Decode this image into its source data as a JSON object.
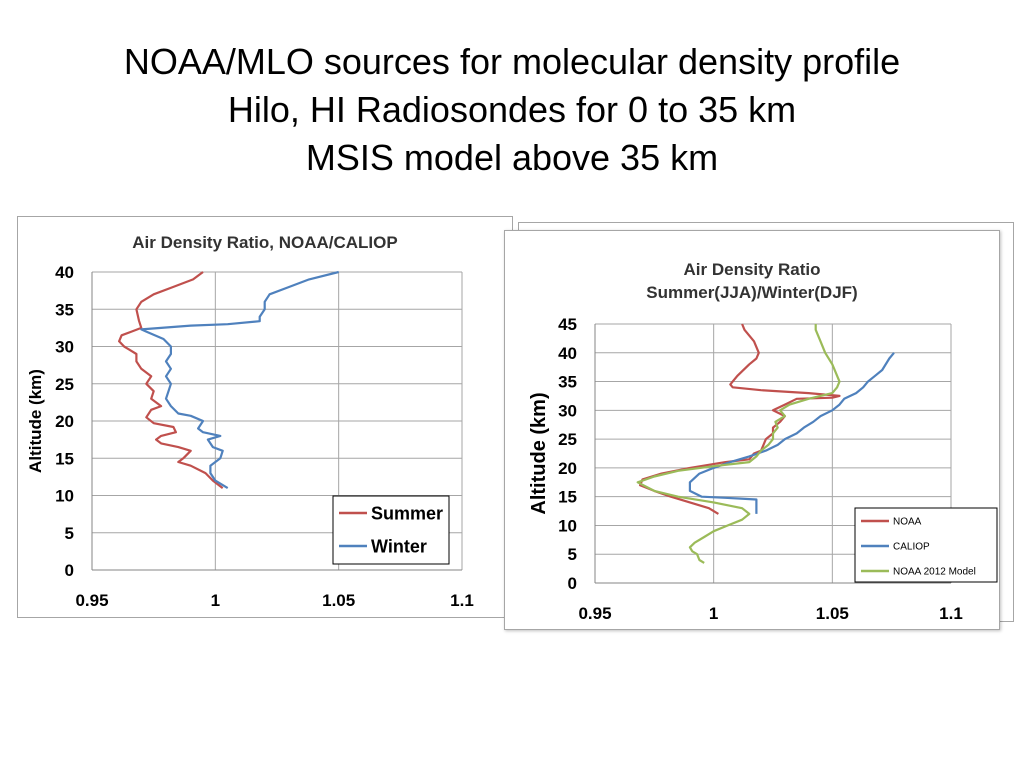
{
  "slide": {
    "title_lines": [
      "NOAA/MLO sources for molecular density profile",
      "Hilo, HI Radiosondes for 0 to 35 km",
      "MSIS model above 35 km"
    ]
  },
  "chart_data": [
    {
      "type": "line",
      "title": "Air Density Ratio, NOAA/CALIOP",
      "xlabel": "",
      "ylabel": "Altitude (km)",
      "xlim": [
        0.95,
        1.1
      ],
      "ylim": [
        0,
        40
      ],
      "x_ticks": [
        "0.95",
        "1",
        "1.05",
        "1.1"
      ],
      "y_ticks": [
        "0",
        "5",
        "10",
        "15",
        "20",
        "25",
        "30",
        "35",
        "40"
      ],
      "grid": true,
      "legend_position": "bottom-right",
      "series": [
        {
          "name": "Summer",
          "color": "#c0504d",
          "points": [
            [
              1.003,
              11
            ],
            [
              0.999,
              12
            ],
            [
              0.996,
              13
            ],
            [
              0.99,
              14
            ],
            [
              0.985,
              14.5
            ],
            [
              0.987,
              15
            ],
            [
              0.99,
              16
            ],
            [
              0.985,
              16.5
            ],
            [
              0.978,
              17
            ],
            [
              0.976,
              17.5
            ],
            [
              0.978,
              18
            ],
            [
              0.984,
              18.5
            ],
            [
              0.983,
              19.2
            ],
            [
              0.975,
              19.7
            ],
            [
              0.972,
              20.5
            ],
            [
              0.974,
              21.5
            ],
            [
              0.978,
              22
            ],
            [
              0.974,
              23
            ],
            [
              0.975,
              24
            ],
            [
              0.972,
              25
            ],
            [
              0.974,
              26
            ],
            [
              0.97,
              27
            ],
            [
              0.968,
              28
            ],
            [
              0.968,
              29
            ],
            [
              0.963,
              30
            ],
            [
              0.961,
              30.7
            ],
            [
              0.962,
              31.5
            ],
            [
              0.966,
              32
            ],
            [
              0.97,
              32.5
            ],
            [
              0.969,
              33.5
            ],
            [
              0.968,
              35
            ],
            [
              0.97,
              36
            ],
            [
              0.975,
              37
            ],
            [
              0.983,
              38
            ],
            [
              0.991,
              39
            ],
            [
              0.995,
              40
            ]
          ]
        },
        {
          "name": "Winter",
          "color": "#4f81bd",
          "points": [
            [
              1.005,
              11
            ],
            [
              1.0,
              12
            ],
            [
              0.998,
              13
            ],
            [
              0.998,
              14
            ],
            [
              1.002,
              15
            ],
            [
              1.003,
              16
            ],
            [
              0.999,
              16.5
            ],
            [
              0.997,
              17.5
            ],
            [
              1.002,
              18
            ],
            [
              0.995,
              18.5
            ],
            [
              0.993,
              19
            ],
            [
              0.995,
              20
            ],
            [
              0.99,
              20.7
            ],
            [
              0.985,
              21
            ],
            [
              0.982,
              22
            ],
            [
              0.98,
              23
            ],
            [
              0.981,
              24
            ],
            [
              0.982,
              25
            ],
            [
              0.98,
              26
            ],
            [
              0.982,
              27
            ],
            [
              0.98,
              28
            ],
            [
              0.982,
              29
            ],
            [
              0.982,
              30
            ],
            [
              0.979,
              31
            ],
            [
              0.972,
              32
            ],
            [
              0.97,
              32.3
            ],
            [
              0.978,
              32.5
            ],
            [
              0.99,
              32.8
            ],
            [
              1.005,
              33
            ],
            [
              1.018,
              33.4
            ],
            [
              1.018,
              34
            ],
            [
              1.02,
              35
            ],
            [
              1.02,
              36
            ],
            [
              1.022,
              37
            ],
            [
              1.03,
              38
            ],
            [
              1.038,
              39
            ],
            [
              1.05,
              40
            ]
          ]
        }
      ]
    },
    {
      "type": "line",
      "title": "Air Density Ratio",
      "subtitle": "Summer(JJA)/Winter(DJF)",
      "xlabel": "",
      "ylabel": "Altitude (km)",
      "xlim": [
        0.95,
        1.1
      ],
      "ylim": [
        0,
        45
      ],
      "x_ticks": [
        "0.95",
        "1",
        "1.05",
        "1.1"
      ],
      "y_ticks": [
        "0",
        "5",
        "10",
        "15",
        "20",
        "25",
        "30",
        "35",
        "40",
        "45"
      ],
      "grid": true,
      "legend_position": "bottom-right",
      "series": [
        {
          "name": "NOAA",
          "color": "#c0504d",
          "points": [
            [
              1.002,
              12
            ],
            [
              0.998,
              13
            ],
            [
              0.99,
              14
            ],
            [
              0.982,
              15
            ],
            [
              0.975,
              16
            ],
            [
              0.969,
              17
            ],
            [
              0.97,
              18
            ],
            [
              0.978,
              19
            ],
            [
              0.99,
              20
            ],
            [
              1.005,
              21
            ],
            [
              1.015,
              21.5
            ],
            [
              1.017,
              22.5
            ],
            [
              1.02,
              23
            ],
            [
              1.022,
              25
            ],
            [
              1.025,
              26
            ],
            [
              1.025,
              27
            ],
            [
              1.028,
              28
            ],
            [
              1.03,
              29
            ],
            [
              1.025,
              30
            ],
            [
              1.03,
              31
            ],
            [
              1.035,
              32
            ],
            [
              1.05,
              32.2
            ],
            [
              1.053,
              32.5
            ],
            [
              1.04,
              33
            ],
            [
              1.02,
              33.5
            ],
            [
              1.008,
              34
            ],
            [
              1.007,
              34.5
            ],
            [
              1.01,
              36
            ],
            [
              1.015,
              38
            ],
            [
              1.018,
              39
            ],
            [
              1.019,
              40
            ],
            [
              1.017,
              42
            ],
            [
              1.013,
              44
            ],
            [
              1.012,
              45
            ]
          ]
        },
        {
          "name": "CALIOP",
          "color": "#4f81bd",
          "points": [
            [
              1.018,
              12
            ],
            [
              1.018,
              14.5
            ],
            [
              1.005,
              14.8
            ],
            [
              0.995,
              15
            ],
            [
              0.99,
              16
            ],
            [
              0.99,
              17.5
            ],
            [
              0.994,
              19
            ],
            [
              1.0,
              20
            ],
            [
              1.007,
              21
            ],
            [
              1.015,
              22
            ],
            [
              1.022,
              23
            ],
            [
              1.027,
              24
            ],
            [
              1.03,
              25
            ],
            [
              1.035,
              26
            ],
            [
              1.038,
              27
            ],
            [
              1.042,
              28
            ],
            [
              1.045,
              29
            ],
            [
              1.05,
              30
            ],
            [
              1.053,
              31
            ],
            [
              1.055,
              32
            ],
            [
              1.06,
              33
            ],
            [
              1.063,
              34
            ],
            [
              1.065,
              35
            ],
            [
              1.068,
              36
            ],
            [
              1.071,
              37
            ],
            [
              1.074,
              39
            ],
            [
              1.076,
              40
            ]
          ]
        },
        {
          "name": "NOAA 2012 Model",
          "color": "#9bbb59",
          "points": [
            [
              0.996,
              3.5
            ],
            [
              0.994,
              4
            ],
            [
              0.993,
              5
            ],
            [
              0.991,
              5.5
            ],
            [
              0.99,
              6.2
            ],
            [
              0.992,
              7
            ],
            [
              0.996,
              8
            ],
            [
              1.0,
              9
            ],
            [
              1.006,
              10
            ],
            [
              1.012,
              11
            ],
            [
              1.015,
              12
            ],
            [
              1.012,
              13
            ],
            [
              1.0,
              14
            ],
            [
              0.985,
              15
            ],
            [
              0.975,
              16
            ],
            [
              0.968,
              17.5
            ],
            [
              0.975,
              18.5
            ],
            [
              0.985,
              19.5
            ],
            [
              1.0,
              20.3
            ],
            [
              1.015,
              21
            ],
            [
              1.018,
              22
            ],
            [
              1.02,
              23
            ],
            [
              1.023,
              24
            ],
            [
              1.025,
              25
            ],
            [
              1.025,
              26
            ],
            [
              1.027,
              27
            ],
            [
              1.026,
              28
            ],
            [
              1.03,
              29
            ],
            [
              1.028,
              30
            ],
            [
              1.032,
              31
            ],
            [
              1.04,
              32
            ],
            [
              1.05,
              33
            ],
            [
              1.052,
              34
            ],
            [
              1.053,
              35
            ],
            [
              1.052,
              36
            ],
            [
              1.05,
              38
            ],
            [
              1.047,
              40
            ],
            [
              1.045,
              42
            ],
            [
              1.043,
              44
            ],
            [
              1.043,
              45
            ]
          ]
        }
      ]
    }
  ]
}
